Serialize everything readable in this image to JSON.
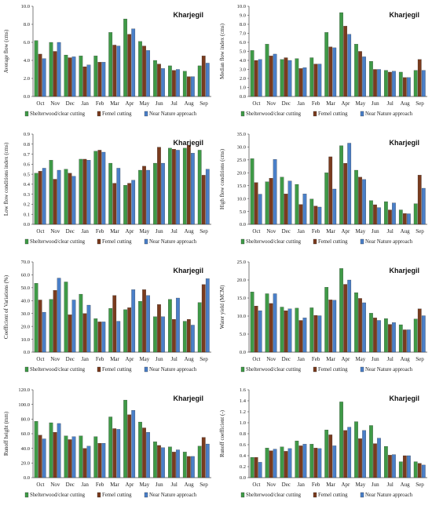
{
  "legend": {
    "items": [
      {
        "name": "Shelterwood/clear cutting",
        "color": "#3f9a47"
      },
      {
        "name": "Femel cutting",
        "color": "#7a3b1e"
      },
      {
        "name": "Near Nature approach",
        "color": "#4a7fc8"
      }
    ],
    "color_bars": [
      "#3f9a47",
      "#7a3b1e",
      "#4a7fc8"
    ]
  },
  "chart_data": [
    {
      "type": "bar",
      "title": "Kharjegil",
      "ylabel": "Average flow (cms)",
      "ylim": [
        0,
        10
      ],
      "yticks": [
        "0.0",
        "2.0",
        "4.0",
        "6.0",
        "8.0",
        "10.0"
      ],
      "categories": [
        "Oct",
        "Nov",
        "Dec",
        "Jan",
        "Feb",
        "Mar",
        "Apr",
        "May",
        "Jun",
        "Jul",
        "Aug",
        "Sep"
      ],
      "series": [
        {
          "name": "Shelterwood/clear cutting",
          "values": [
            6.2,
            6.0,
            4.6,
            4.5,
            4.5,
            7.1,
            8.6,
            6.1,
            4.0,
            3.4,
            2.8,
            3.4
          ]
        },
        {
          "name": "Femel cutting",
          "values": [
            4.7,
            5.0,
            4.3,
            3.3,
            3.8,
            5.7,
            6.9,
            5.6,
            3.6,
            2.9,
            2.2,
            4.5
          ]
        },
        {
          "name": "Near Nature approach",
          "values": [
            4.2,
            6.0,
            4.4,
            3.5,
            3.8,
            5.6,
            7.5,
            5.1,
            3.1,
            3.0,
            2.2,
            3.7
          ]
        }
      ]
    },
    {
      "type": "bar",
      "title": "Kharjegil",
      "ylabel": "Median flow index (cms)",
      "ylim": [
        0,
        10
      ],
      "yticks": [
        "0.0",
        "1.0",
        "2.0",
        "3.0",
        "4.0",
        "5.0",
        "6.0",
        "7.0",
        "8.0",
        "9.0",
        "10.0"
      ],
      "categories": [
        "Oct",
        "Nov",
        "Dec",
        "Jan",
        "Feb",
        "Mar",
        "Apr",
        "May",
        "Jun",
        "Jul",
        "Aug",
        "Sep"
      ],
      "series": [
        {
          "name": "Shelterwood/clear cutting",
          "values": [
            5.1,
            5.8,
            4.1,
            4.2,
            4.3,
            7.1,
            9.3,
            5.8,
            3.9,
            2.9,
            2.7,
            2.9
          ]
        },
        {
          "name": "Femel cutting",
          "values": [
            4.0,
            4.5,
            4.3,
            3.1,
            3.6,
            5.5,
            7.8,
            5.0,
            3.0,
            2.7,
            2.1,
            4.1
          ]
        },
        {
          "name": "Near Nature approach",
          "values": [
            4.1,
            4.7,
            4.0,
            3.2,
            3.6,
            5.4,
            6.9,
            4.4,
            3.0,
            2.8,
            2.1,
            2.9
          ]
        }
      ]
    },
    {
      "type": "bar",
      "title": "Kharjegil",
      "ylabel": "Low flow conditions index (cms)",
      "ylim": [
        0,
        0.9
      ],
      "yticks": [
        "0.0",
        "0.1",
        "0.2",
        "0.3",
        "0.4",
        "0.5",
        "0.6",
        "0.7",
        "0.8",
        "0.9"
      ],
      "categories": [
        "Oct",
        "Nov",
        "Dec",
        "Jan",
        "Feb",
        "Mar",
        "Apr",
        "May",
        "Jun",
        "Jul",
        "Aug",
        "Sep"
      ],
      "series": [
        {
          "name": "Shelterwood/clear cutting",
          "values": [
            0.51,
            0.64,
            0.55,
            0.65,
            0.73,
            0.61,
            0.39,
            0.54,
            0.61,
            0.76,
            0.76,
            0.74
          ]
        },
        {
          "name": "Femel cutting",
          "values": [
            0.53,
            0.45,
            0.51,
            0.65,
            0.74,
            0.41,
            0.41,
            0.58,
            0.77,
            0.75,
            0.79,
            0.49
          ]
        },
        {
          "name": "Near Nature approach",
          "values": [
            0.56,
            0.54,
            0.48,
            0.64,
            0.72,
            0.56,
            0.44,
            0.54,
            0.61,
            0.74,
            0.71,
            0.55
          ]
        }
      ]
    },
    {
      "type": "bar",
      "title": "Kharjegil",
      "ylabel": "High flow conditions (cms)",
      "ylim": [
        0,
        35
      ],
      "yticks": [
        "0.0",
        "5.0",
        "10.0",
        "15.0",
        "20.0",
        "25.0",
        "30.0",
        "35.0"
      ],
      "categories": [
        "Oct",
        "Nov",
        "Dec",
        "Jan",
        "Feb",
        "Mar",
        "Apr",
        "May",
        "Jun",
        "Jul",
        "Aug",
        "Sep"
      ],
      "series": [
        {
          "name": "Shelterwood/clear cutting",
          "values": [
            25.5,
            16.5,
            18.3,
            15.5,
            9.8,
            20.0,
            30.5,
            21.0,
            9.2,
            8.8,
            5.6,
            8.0
          ]
        },
        {
          "name": "Femel cutting",
          "values": [
            16.2,
            17.9,
            11.8,
            7.7,
            7.1,
            26.2,
            23.7,
            18.3,
            7.6,
            5.6,
            4.2,
            19.1
          ]
        },
        {
          "name": "Near Nature approach",
          "values": [
            11.7,
            25.2,
            16.8,
            11.8,
            6.7,
            13.7,
            31.5,
            17.4,
            6.5,
            8.3,
            4.1,
            14.0
          ]
        }
      ]
    },
    {
      "type": "bar",
      "title": "Kharjegil",
      "ylabel": "Coefficient of Variations (%)",
      "ylim": [
        0,
        70
      ],
      "yticks": [
        "0.0",
        "10.0",
        "20.0",
        "30.0",
        "40.0",
        "50.0",
        "60.0",
        "70.0"
      ],
      "categories": [
        "Oct",
        "Nov",
        "Dec",
        "Jan",
        "Feb",
        "Mar",
        "Apr",
        "May",
        "Jun",
        "Jul",
        "Aug",
        "Sep"
      ],
      "series": [
        {
          "name": "Shelterwood/clear cutting",
          "values": [
            53.5,
            41.0,
            54.5,
            45.0,
            26.0,
            34.0,
            33.0,
            39.5,
            27.5,
            41.0,
            24.0,
            38.5
          ]
        },
        {
          "name": "Femel cutting",
          "values": [
            40.5,
            48.0,
            29.0,
            30.0,
            23.5,
            44.0,
            34.5,
            48.5,
            37.0,
            25.5,
            25.5,
            52.5
          ]
        },
        {
          "name": "Near Nature approach",
          "values": [
            31.0,
            57.5,
            40.5,
            36.5,
            23.5,
            24.0,
            48.5,
            44.0,
            27.5,
            42.0,
            21.0,
            57.0
          ]
        }
      ]
    },
    {
      "type": "bar",
      "title": "Kharjegil",
      "ylabel": "Water yield (MCM)",
      "ylim": [
        0,
        25
      ],
      "yticks": [
        "0.0",
        "5.0",
        "10.0",
        "15.0",
        "20.0",
        "25.0"
      ],
      "categories": [
        "Oct",
        "Nov",
        "Dec",
        "Jan",
        "Feb",
        "Mar",
        "Apr",
        "May",
        "Jun",
        "Jul",
        "Aug",
        "Sep"
      ],
      "series": [
        {
          "name": "Shelterwood/clear cutting",
          "values": [
            16.7,
            16.2,
            12.5,
            12.2,
            12.3,
            18.0,
            23.2,
            16.5,
            10.8,
            9.3,
            7.6,
            9.2
          ]
        },
        {
          "name": "Femel cutting",
          "values": [
            12.8,
            13.5,
            11.5,
            8.8,
            10.2,
            14.5,
            18.8,
            14.9,
            9.5,
            7.7,
            6.2,
            12.0
          ]
        },
        {
          "name": "Near Nature approach",
          "values": [
            11.5,
            16.2,
            12.0,
            9.5,
            10.1,
            14.4,
            20.0,
            13.7,
            8.8,
            8.2,
            6.2,
            10.1
          ]
        }
      ]
    },
    {
      "type": "bar",
      "title": "Kharjegil",
      "ylabel": "Runoff height (mm)",
      "ylim": [
        0,
        120
      ],
      "yticks": [
        "0.0",
        "20.0",
        "40.0",
        "60.0",
        "80.0",
        "100.0",
        "120.0"
      ],
      "categories": [
        "Oct",
        "Nov",
        "Dec",
        "Jan",
        "Feb",
        "Mar",
        "Apr",
        "May",
        "Jun",
        "Jul",
        "Aug",
        "Sep"
      ],
      "series": [
        {
          "name": "Shelterwood/clear cutting",
          "values": [
            77,
            75,
            57,
            57,
            56,
            83,
            106,
            76,
            49,
            42,
            35,
            43
          ]
        },
        {
          "name": "Femel cutting",
          "values": [
            58,
            62,
            52,
            40,
            47,
            67,
            86,
            68,
            44,
            35,
            29,
            55
          ]
        },
        {
          "name": "Near Nature approach",
          "values": [
            53,
            74,
            56,
            43,
            47,
            66,
            92,
            62,
            41,
            38,
            29,
            46
          ]
        }
      ]
    },
    {
      "type": "bar",
      "title": "Kharjegil",
      "ylabel": "Runoff coefficient (-)",
      "ylim": [
        0,
        1.6
      ],
      "yticks": [
        "0.0",
        "0.2",
        "0.4",
        "0.6",
        "0.8",
        "1.0",
        "1.2",
        "1.4",
        "1.6"
      ],
      "categories": [
        "Oct",
        "Nov",
        "Dec",
        "Jan",
        "Feb",
        "Mar",
        "Apr",
        "May",
        "Jun",
        "Jul",
        "Aug",
        "Sep"
      ],
      "series": [
        {
          "name": "Shelterwood/clear cutting",
          "values": [
            0.37,
            0.54,
            0.56,
            0.67,
            0.61,
            0.87,
            1.38,
            1.02,
            0.95,
            0.57,
            0.29,
            0.29
          ]
        },
        {
          "name": "Femel cutting",
          "values": [
            0.37,
            0.49,
            0.48,
            0.58,
            0.54,
            0.78,
            0.86,
            0.71,
            0.62,
            0.41,
            0.4,
            0.26
          ]
        },
        {
          "name": "Near Nature approach",
          "values": [
            0.28,
            0.52,
            0.53,
            0.61,
            0.53,
            0.58,
            0.92,
            0.86,
            0.72,
            0.42,
            0.4,
            0.23
          ]
        }
      ]
    }
  ]
}
